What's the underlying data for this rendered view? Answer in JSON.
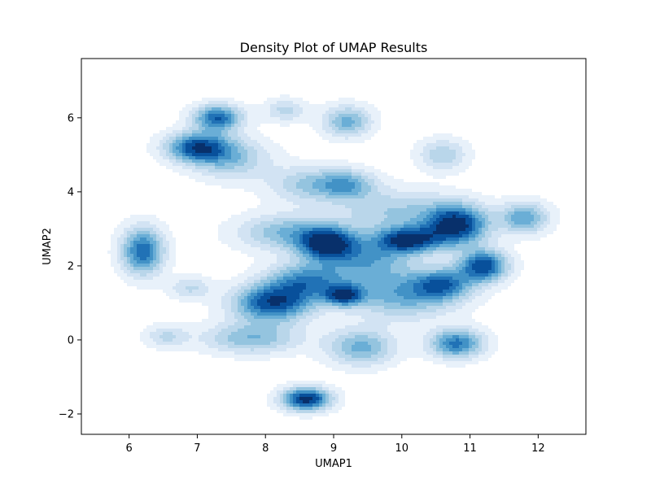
{
  "chart_data": {
    "type": "density",
    "title": "Density Plot of UMAP Results",
    "xlabel": "UMAP1",
    "ylabel": "UMAP2",
    "xlim": [
      5.3,
      12.7
    ],
    "ylim": [
      -2.55,
      7.6
    ],
    "xticks": [
      6,
      7,
      8,
      9,
      10,
      11,
      12
    ],
    "yticks": [
      -2,
      0,
      2,
      4,
      6
    ],
    "xtick_labels": [
      "6",
      "7",
      "8",
      "9",
      "10",
      "11",
      "12"
    ],
    "ytick_labels": [
      "−2",
      "0",
      "2",
      "4",
      "6"
    ],
    "grid": false,
    "legend": false,
    "colormap": "Blues",
    "colors": [
      "#e8f1fa",
      "#d2e3f3",
      "#b9d6ea",
      "#94c4df",
      "#6aaed6",
      "#4292c6",
      "#2172b6",
      "#08509b",
      "#08306b"
    ],
    "levels": [
      0.12,
      0.32,
      0.52,
      0.72,
      0.92,
      1.12,
      1.32,
      1.52,
      1.78
    ],
    "density_centers": [
      {
        "x": 6.2,
        "y": 2.4,
        "weight": 1.5,
        "sx": 0.22,
        "sy": 0.45
      },
      {
        "x": 6.55,
        "y": 0.1,
        "weight": 0.55,
        "sx": 0.22,
        "sy": 0.22
      },
      {
        "x": 6.9,
        "y": 1.4,
        "weight": 0.55,
        "sx": 0.22,
        "sy": 0.22
      },
      {
        "x": 7.0,
        "y": 5.2,
        "weight": 1.6,
        "sx": 0.32,
        "sy": 0.28
      },
      {
        "x": 7.3,
        "y": 6.0,
        "weight": 1.5,
        "sx": 0.25,
        "sy": 0.25
      },
      {
        "x": 7.5,
        "y": 4.9,
        "weight": 0.8,
        "sx": 0.4,
        "sy": 0.4
      },
      {
        "x": 8.3,
        "y": 6.2,
        "weight": 0.6,
        "sx": 0.22,
        "sy": 0.22
      },
      {
        "x": 8.6,
        "y": 4.2,
        "weight": 0.7,
        "sx": 0.4,
        "sy": 0.35
      },
      {
        "x": 9.2,
        "y": 4.2,
        "weight": 0.95,
        "sx": 0.3,
        "sy": 0.28
      },
      {
        "x": 9.2,
        "y": 5.9,
        "weight": 1.0,
        "sx": 0.25,
        "sy": 0.3
      },
      {
        "x": 10.6,
        "y": 5.0,
        "weight": 0.7,
        "sx": 0.25,
        "sy": 0.3
      },
      {
        "x": 7.8,
        "y": 0.05,
        "weight": 0.9,
        "sx": 0.5,
        "sy": 0.3
      },
      {
        "x": 8.1,
        "y": 1.0,
        "weight": 1.7,
        "sx": 0.4,
        "sy": 0.35
      },
      {
        "x": 8.6,
        "y": 1.6,
        "weight": 1.2,
        "sx": 0.4,
        "sy": 0.35
      },
      {
        "x": 8.3,
        "y": 2.9,
        "weight": 0.9,
        "sx": 0.5,
        "sy": 0.35
      },
      {
        "x": 8.9,
        "y": 2.6,
        "weight": 1.8,
        "sx": 0.28,
        "sy": 0.3
      },
      {
        "x": 9.15,
        "y": 1.2,
        "weight": 1.4,
        "sx": 0.2,
        "sy": 0.2
      },
      {
        "x": 9.5,
        "y": 2.2,
        "weight": 1.0,
        "sx": 0.45,
        "sy": 0.45
      },
      {
        "x": 9.4,
        "y": -0.2,
        "weight": 1.0,
        "sx": 0.35,
        "sy": 0.35
      },
      {
        "x": 10.1,
        "y": 2.7,
        "weight": 1.7,
        "sx": 0.32,
        "sy": 0.25
      },
      {
        "x": 10.0,
        "y": 1.2,
        "weight": 1.0,
        "sx": 0.55,
        "sy": 0.45
      },
      {
        "x": 10.6,
        "y": 1.5,
        "weight": 1.2,
        "sx": 0.3,
        "sy": 0.3
      },
      {
        "x": 10.8,
        "y": 3.1,
        "weight": 1.9,
        "sx": 0.32,
        "sy": 0.38
      },
      {
        "x": 11.2,
        "y": 2.0,
        "weight": 1.7,
        "sx": 0.25,
        "sy": 0.3
      },
      {
        "x": 10.8,
        "y": -0.1,
        "weight": 1.4,
        "sx": 0.28,
        "sy": 0.28
      },
      {
        "x": 11.8,
        "y": 3.3,
        "weight": 1.1,
        "sx": 0.25,
        "sy": 0.3
      },
      {
        "x": 8.6,
        "y": -1.6,
        "weight": 1.9,
        "sx": 0.25,
        "sy": 0.22
      },
      {
        "x": 9.9,
        "y": 3.5,
        "weight": 0.7,
        "sx": 0.6,
        "sy": 0.4
      }
    ]
  }
}
